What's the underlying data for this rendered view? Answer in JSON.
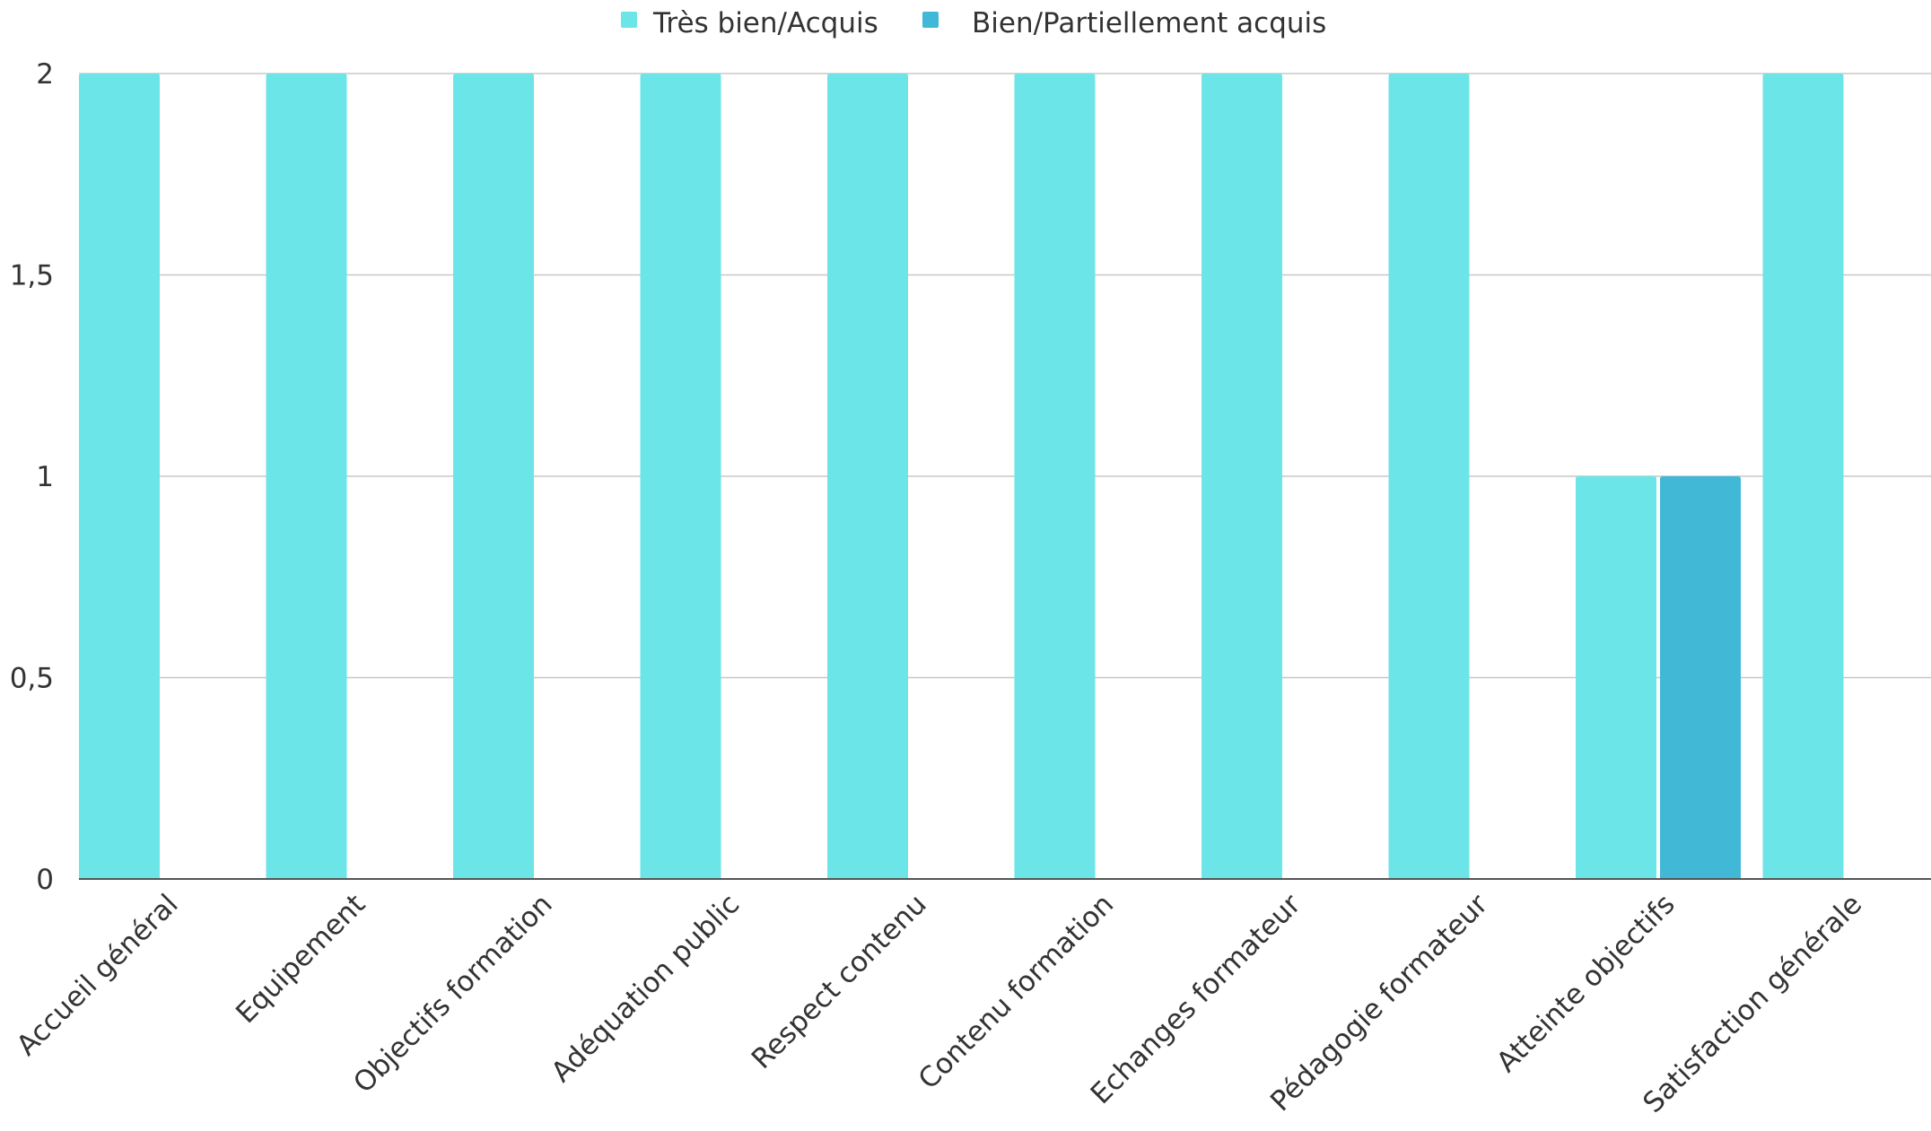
{
  "chart_data": {
    "type": "bar",
    "categories": [
      "Accueil général",
      "Equipement",
      "Objectifs formation",
      "Adéquation public",
      "Respect contenu",
      "Contenu formation",
      "Echanges formateur",
      "Pédagogie formateur",
      "Atteinte objectifs",
      "Satisfaction générale"
    ],
    "series": [
      {
        "name": "Très bien/Acquis",
        "color": "#6ce5e8",
        "values": [
          2,
          2,
          2,
          2,
          2,
          2,
          2,
          2,
          1,
          2
        ]
      },
      {
        "name": "Bien/Partiellement acquis",
        "color": "#41b8d5",
        "values": [
          0,
          0,
          0,
          0,
          0,
          0,
          0,
          0,
          1,
          0
        ]
      }
    ],
    "y_ticks": [
      "0",
      "0,5",
      "1",
      "1,5",
      "2"
    ],
    "ylim": [
      0,
      2
    ],
    "grid": true,
    "legend_position": "top-center"
  }
}
